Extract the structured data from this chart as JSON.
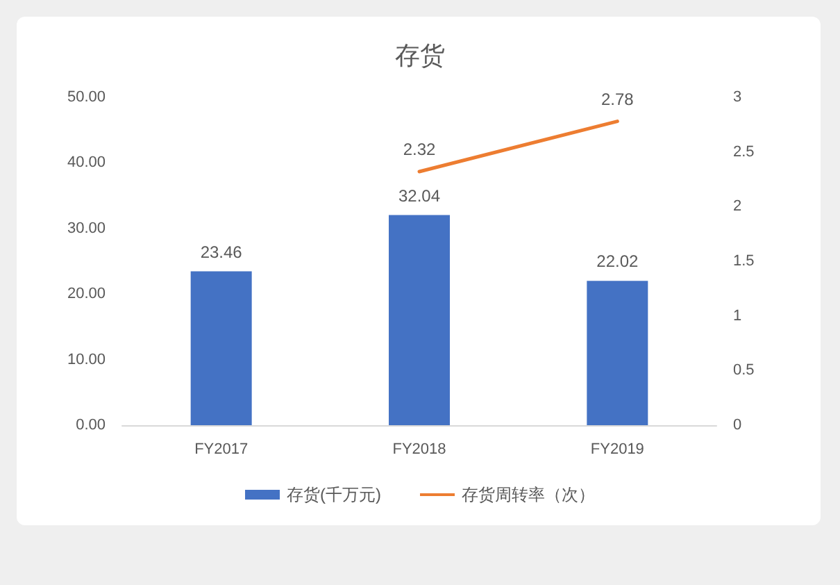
{
  "chart_data": {
    "type": "bar",
    "title": "存货",
    "categories": [
      "FY2017",
      "FY2018",
      "FY2019"
    ],
    "series": [
      {
        "name": "存货(千万元)",
        "color": "#4472c4",
        "values": [
          23.46,
          32.04,
          22.02
        ]
      },
      {
        "name": "存货周转率（次）",
        "type": "line",
        "axis": "y2",
        "color": "#ed7d31",
        "values": [
          null,
          2.32,
          2.78
        ]
      }
    ],
    "ylim": [
      0,
      50
    ],
    "yticks": [
      {
        "value": 0,
        "label": "0.00"
      },
      {
        "value": 10,
        "label": "10.00"
      },
      {
        "value": 20,
        "label": "20.00"
      },
      {
        "value": 30,
        "label": "30.00"
      },
      {
        "value": 40,
        "label": "40.00"
      },
      {
        "value": 50,
        "label": "50.00"
      }
    ],
    "y2lim": [
      0,
      3
    ],
    "y2ticks": [
      0,
      0.5,
      1,
      1.5,
      2,
      2.5,
      3
    ],
    "data_labels": true,
    "legend": "bottom",
    "grid": false,
    "marker": "none",
    "line_style": "solid"
  }
}
